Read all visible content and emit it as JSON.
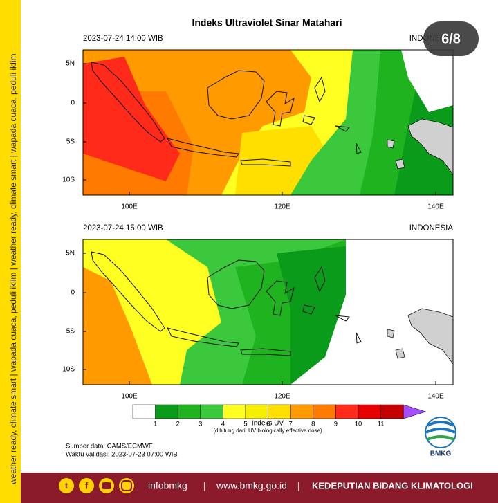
{
  "title": "Indeks Ultraviolet Sinar Matahari",
  "badge": "6/8",
  "sidebar": "weather ready, climate smart  |  wapada cuaca, peduli iklim  |  weather ready, climate smart  |  wapada cuaca, peduli iklim",
  "panels": [
    {
      "datetime": "2023-07-24  14:00 WIB",
      "region": "INDONESIA",
      "lat_labels": [
        "5N",
        "0",
        "5S",
        "10S"
      ],
      "lon_labels": [
        "100E",
        "120E",
        "140E"
      ]
    },
    {
      "datetime": "2023-07-24  15:00 WIB",
      "region": "INDONESIA",
      "lat_labels": [
        "5N",
        "0",
        "5S",
        "10S"
      ],
      "lon_labels": [
        "100E",
        "120E",
        "140E"
      ]
    }
  ],
  "colorbar": {
    "labels": [
      1,
      2,
      3,
      4,
      5,
      6,
      7,
      8,
      9,
      10,
      11
    ],
    "colors": [
      "#ffffff",
      "#0b9b1b",
      "#1fb41f",
      "#3cc83c",
      "#ffff22",
      "#f7ef00",
      "#ffdf00",
      "#ff9a00",
      "#ff7a00",
      "#ff2a1a",
      "#e80000",
      "#c40000",
      "#a64dff"
    ],
    "title": "Indeks UV",
    "note": "(dihitung dari: UV biologically effective dose)"
  },
  "source": "Sumber data: CAMS/ECMWF",
  "validation": "Waktu validasi: 2023-07-23 07:00 WIB",
  "logo": "BMKG",
  "footer": {
    "handle": "infobmkg",
    "separator": "|",
    "website": "www.bmkg.go.id",
    "department": "KEDEPUTIAN BIDANG KLIMATOLOGI"
  }
}
